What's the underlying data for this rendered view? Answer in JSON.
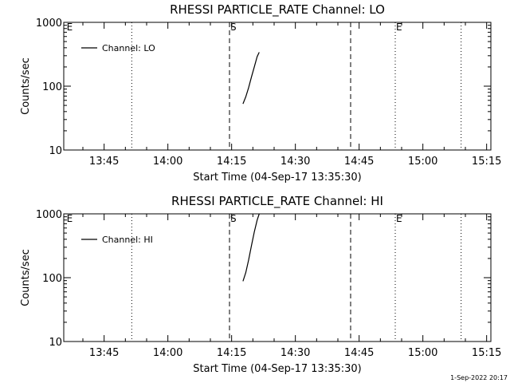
{
  "chart_data": [
    {
      "type": "line",
      "title": "RHESSI PARTICLE_RATE Channel: LO",
      "xlabel": "Start Time (04-Sep-17 13:35:30)",
      "ylabel": "Counts/sec",
      "yscale": "log",
      "ylim": [
        10,
        1000
      ],
      "xlim": [
        "13:35:30",
        "15:16:00"
      ],
      "x_ticks": [
        "13:45",
        "14:00",
        "14:15",
        "14:30",
        "14:45",
        "15:00",
        "15:15"
      ],
      "y_ticks": [
        "10",
        "100",
        "1000"
      ],
      "legend": {
        "entries": [
          "Channel: LO"
        ],
        "placement": "top-left"
      },
      "series": [
        {
          "name": "Channel: LO",
          "x": [
            "14:17:40",
            "14:18:20",
            "14:19:00",
            "14:19:40",
            "14:20:20",
            "14:21:00",
            "14:21:30"
          ],
          "y": [
            53,
            68,
            95,
            140,
            200,
            290,
            340
          ]
        }
      ],
      "vlines": [
        {
          "x": "13:36:00",
          "style": "dotted",
          "label": "E"
        },
        {
          "x": "13:51:30",
          "style": "dotted",
          "label": ""
        },
        {
          "x": "14:14:30",
          "style": "dashed",
          "label": "S"
        },
        {
          "x": "14:43:00",
          "style": "dashed",
          "label": ""
        },
        {
          "x": "14:53:30",
          "style": "dotted",
          "label": "E"
        },
        {
          "x": "15:09:00",
          "style": "dotted",
          "label": ""
        }
      ]
    },
    {
      "type": "line",
      "title": "RHESSI PARTICLE_RATE Channel: HI",
      "xlabel": "Start Time (04-Sep-17 13:35:30)",
      "ylabel": "Counts/sec",
      "yscale": "log",
      "ylim": [
        10,
        1000
      ],
      "xlim": [
        "13:35:30",
        "15:16:00"
      ],
      "x_ticks": [
        "13:45",
        "14:00",
        "14:15",
        "14:30",
        "14:45",
        "15:00",
        "15:15"
      ],
      "y_ticks": [
        "10",
        "100",
        "1000"
      ],
      "legend": {
        "entries": [
          "Channel: HI"
        ],
        "placement": "top-left"
      },
      "series": [
        {
          "name": "Channel: HI",
          "x": [
            "14:17:40",
            "14:18:20",
            "14:19:00",
            "14:19:40",
            "14:20:20",
            "14:21:00",
            "14:21:30"
          ],
          "y": [
            88,
            120,
            190,
            320,
            520,
            800,
            1000
          ]
        }
      ],
      "vlines": [
        {
          "x": "13:36:00",
          "style": "dotted",
          "label": "E"
        },
        {
          "x": "13:51:30",
          "style": "dotted",
          "label": ""
        },
        {
          "x": "14:14:30",
          "style": "dashed",
          "label": "S"
        },
        {
          "x": "14:43:00",
          "style": "dashed",
          "label": ""
        },
        {
          "x": "14:53:30",
          "style": "dotted",
          "label": "E"
        },
        {
          "x": "15:09:00",
          "style": "dotted",
          "label": ""
        }
      ]
    }
  ],
  "footer": {
    "stamp": "1-Sep-2022 20:17"
  }
}
